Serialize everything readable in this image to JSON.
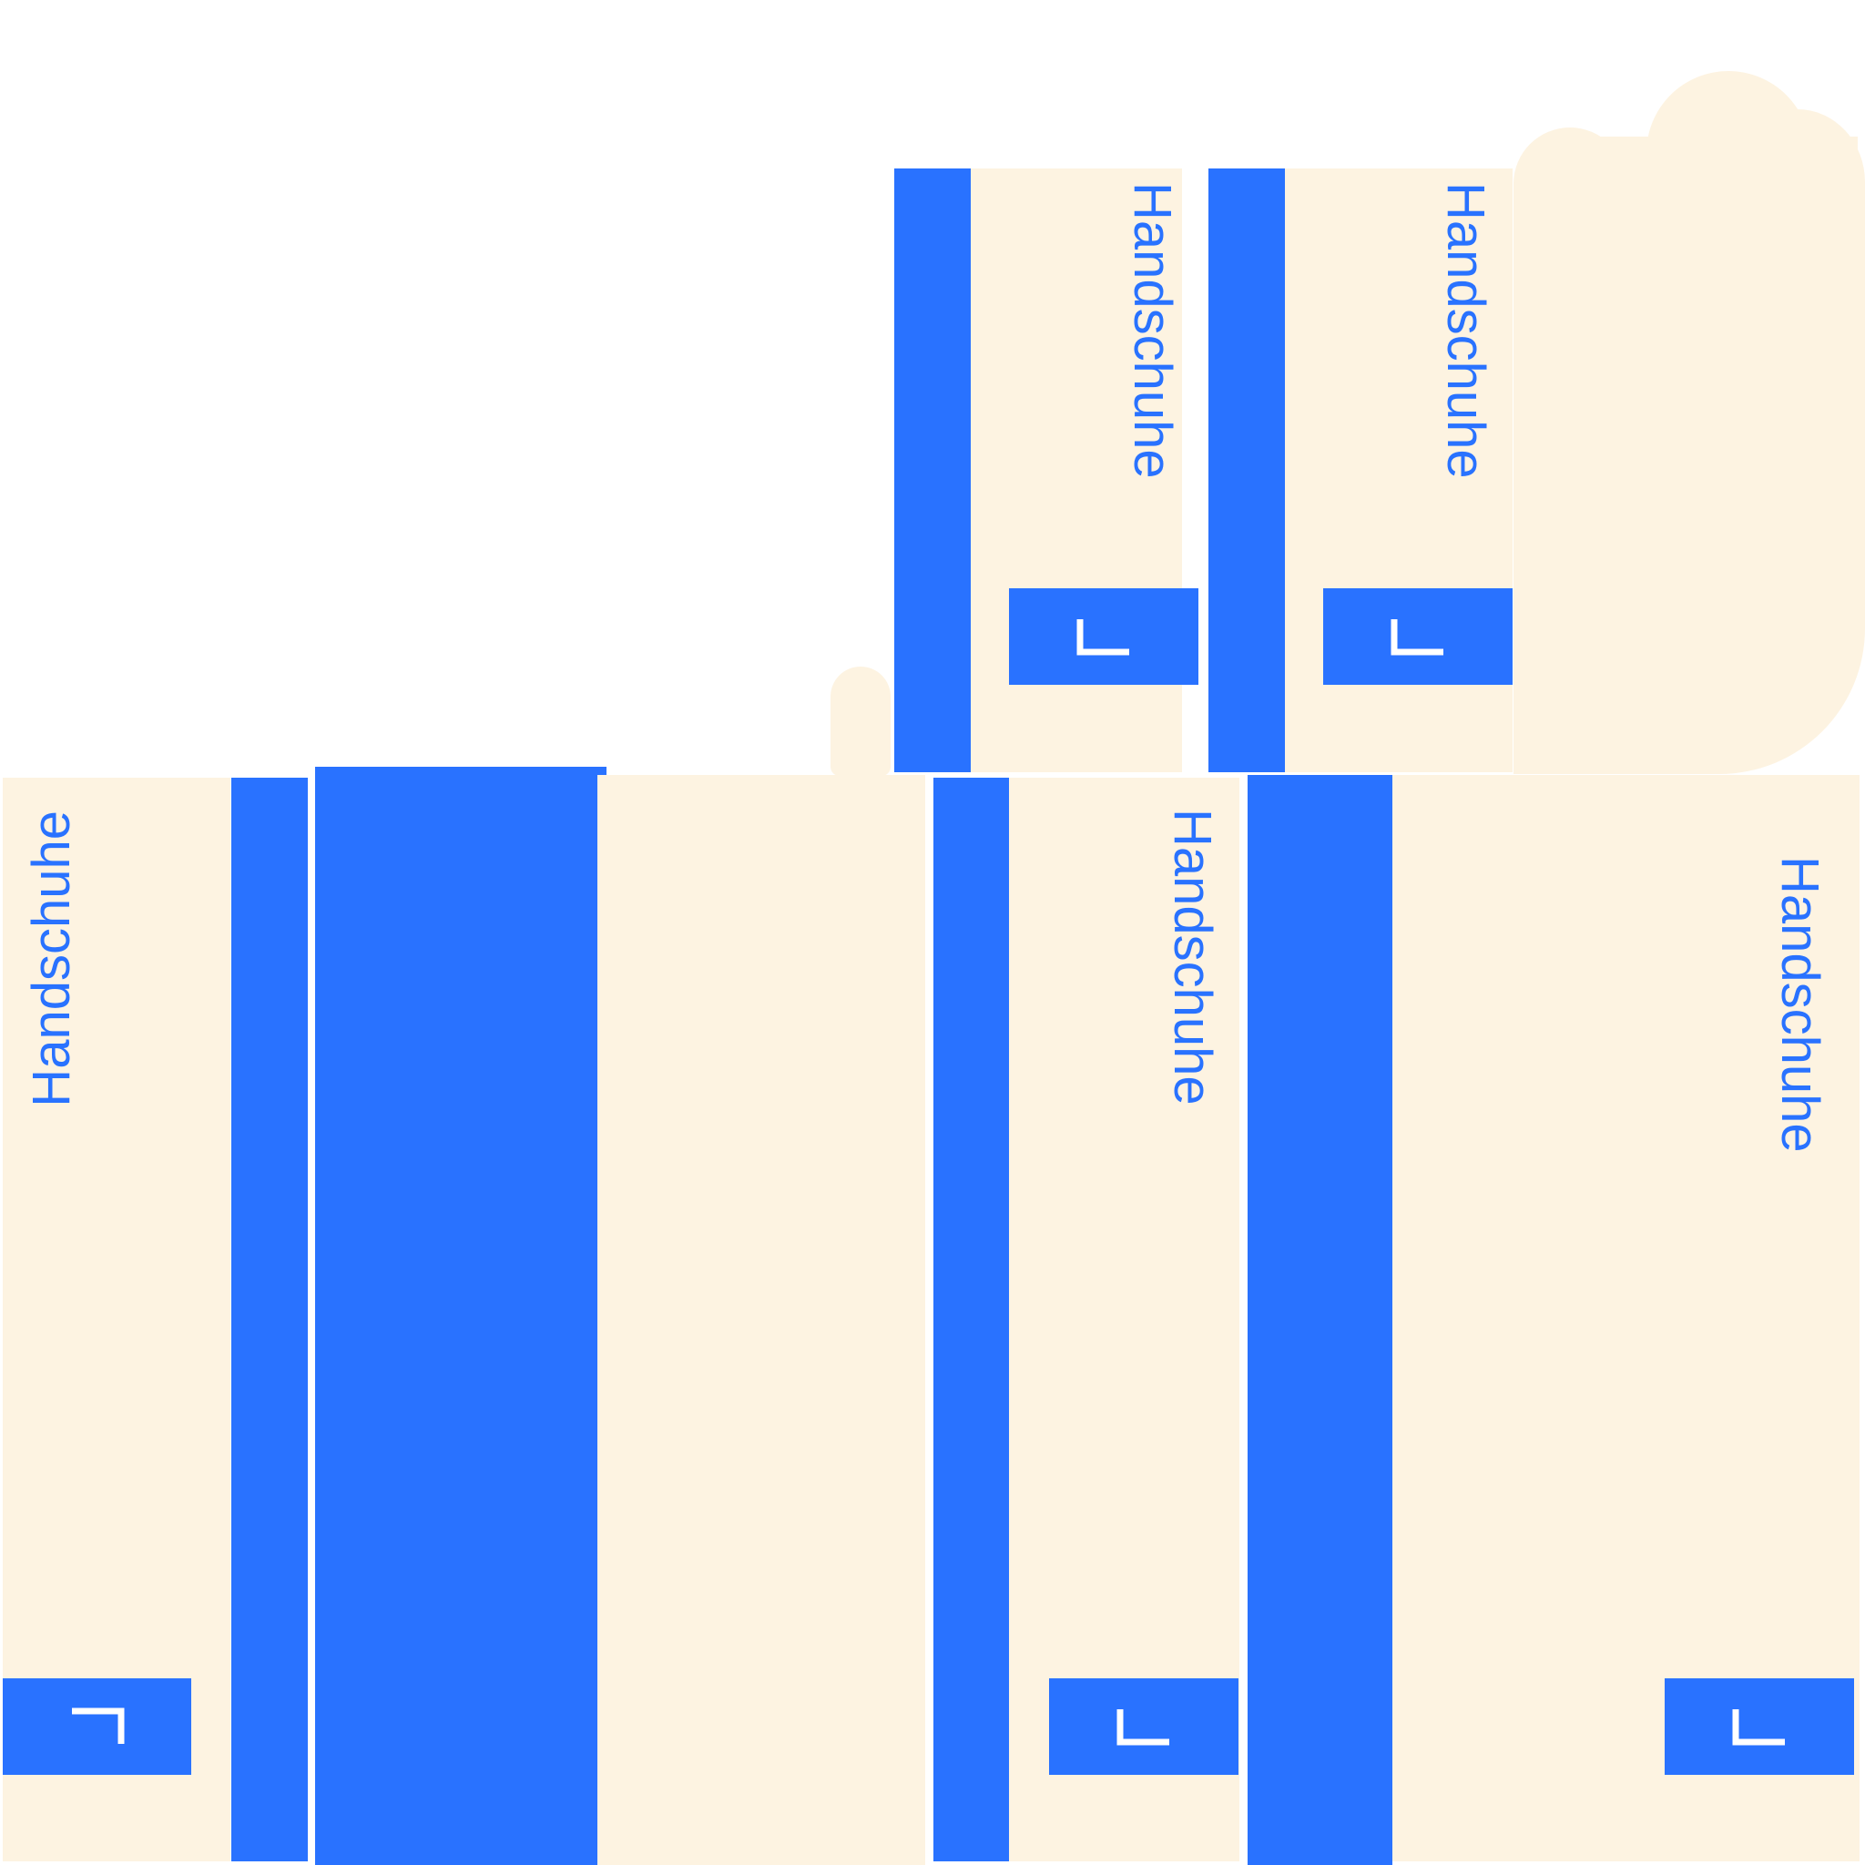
{
  "colors": {
    "background": "#FFFFFF",
    "box": "#FDF3E1",
    "accent": "#2972FF",
    "mark": "#FFFFFF"
  },
  "boxes": [
    {
      "id": "top-left",
      "label": "Handschuhe",
      "size_icon": "corner-mark-icon"
    },
    {
      "id": "top-right",
      "label": "Handschuhe",
      "size_icon": "corner-mark-icon"
    },
    {
      "id": "bottom-left",
      "label": "Handschuhe",
      "size_icon": "corner-mark-icon"
    },
    {
      "id": "bottom-middle",
      "label": "Handschuhe",
      "size_icon": "corner-mark-icon"
    },
    {
      "id": "bottom-right",
      "label": "Handschuhe",
      "size_icon": "corner-mark-icon"
    }
  ]
}
